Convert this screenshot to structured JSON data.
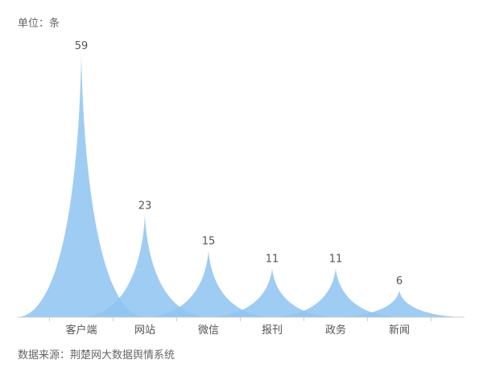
{
  "unit_label": "单位：条",
  "source_label": "数据来源：荆楚网大数据舆情系统",
  "colors": {
    "fill": "#8ec3f1",
    "axis": "#cfcfcf",
    "tick_label": "#555555",
    "value_label": "#555555"
  },
  "chart_data": {
    "type": "pictorial-bar",
    "categories": [
      "客户端",
      "网站",
      "微信",
      "报刊",
      "政务",
      "新闻"
    ],
    "values": [
      59,
      23,
      15,
      11,
      11,
      6
    ],
    "title": "",
    "xlabel": "",
    "ylabel": "",
    "ylim": [
      0,
      59
    ],
    "grid": false,
    "data_labels": true
  }
}
